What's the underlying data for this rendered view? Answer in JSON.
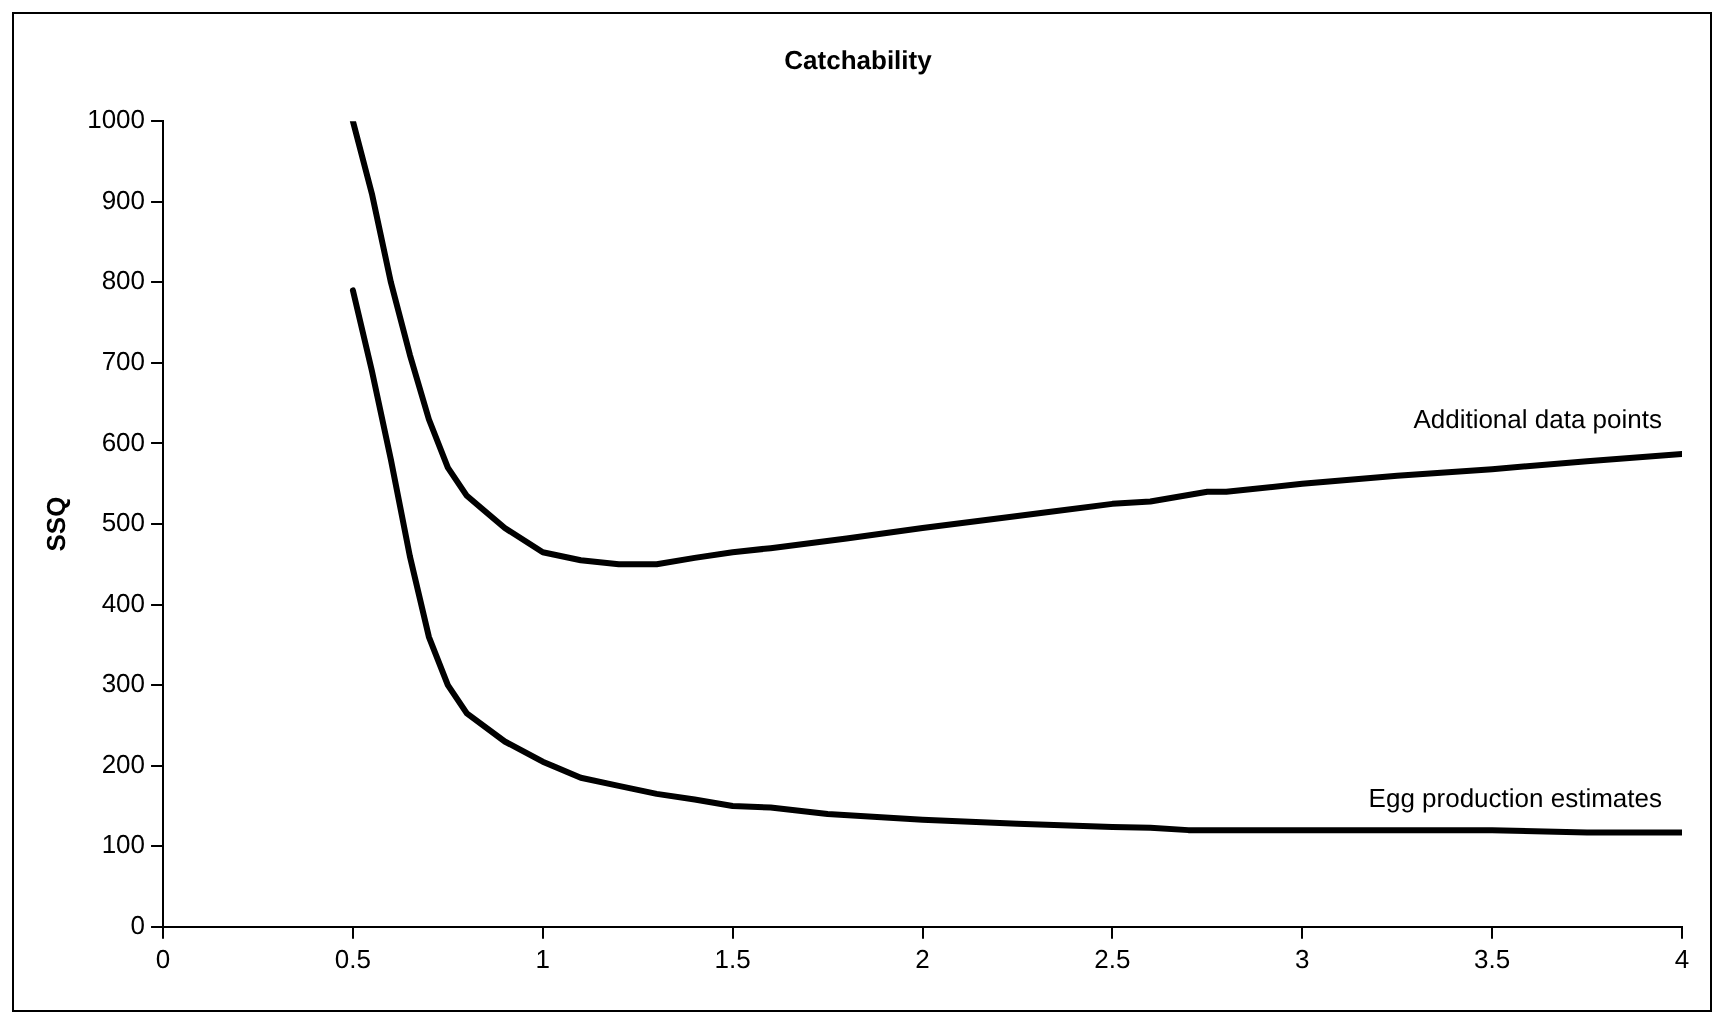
{
  "chart_data": {
    "type": "line",
    "title": "Catchability",
    "ylabel": "SSQ",
    "xlim": [
      0,
      4
    ],
    "xticks": [
      0,
      0.5,
      1,
      1.5,
      2,
      2.5,
      3,
      3.5,
      4
    ],
    "ylim": [
      0,
      1000
    ],
    "yticks": [
      0,
      100,
      200,
      300,
      400,
      500,
      600,
      700,
      800,
      900,
      1000
    ],
    "grid": false,
    "legend": false,
    "marker": "none",
    "line_style": "solid",
    "series": [
      {
        "name": "Additional data points",
        "color": "#000000",
        "x": [
          0.5,
          0.55,
          0.6,
          0.65,
          0.7,
          0.75,
          0.8,
          0.9,
          1.0,
          1.1,
          1.2,
          1.3,
          1.4,
          1.5,
          1.6,
          1.8,
          2.0,
          2.25,
          2.5,
          2.6,
          2.75,
          2.8,
          3.0,
          3.25,
          3.5,
          3.75,
          4.0
        ],
        "values": [
          1000,
          910,
          800,
          710,
          630,
          570,
          535,
          495,
          465,
          455,
          450,
          450,
          458,
          465,
          470,
          482,
          495,
          510,
          525,
          528,
          540,
          540,
          550,
          560,
          568,
          578,
          587
        ]
      },
      {
        "name": "Egg production estimates",
        "color": "#000000",
        "x": [
          0.5,
          0.55,
          0.6,
          0.65,
          0.7,
          0.75,
          0.8,
          0.9,
          1.0,
          1.1,
          1.2,
          1.3,
          1.4,
          1.5,
          1.6,
          1.75,
          2.0,
          2.25,
          2.5,
          2.6,
          2.7,
          3.0,
          3.25,
          3.5,
          3.75,
          4.0
        ],
        "values": [
          790,
          690,
          580,
          460,
          360,
          300,
          265,
          230,
          205,
          185,
          175,
          165,
          158,
          150,
          148,
          140,
          133,
          128,
          124,
          123,
          120,
          120,
          120,
          120,
          117,
          117
        ]
      }
    ]
  }
}
